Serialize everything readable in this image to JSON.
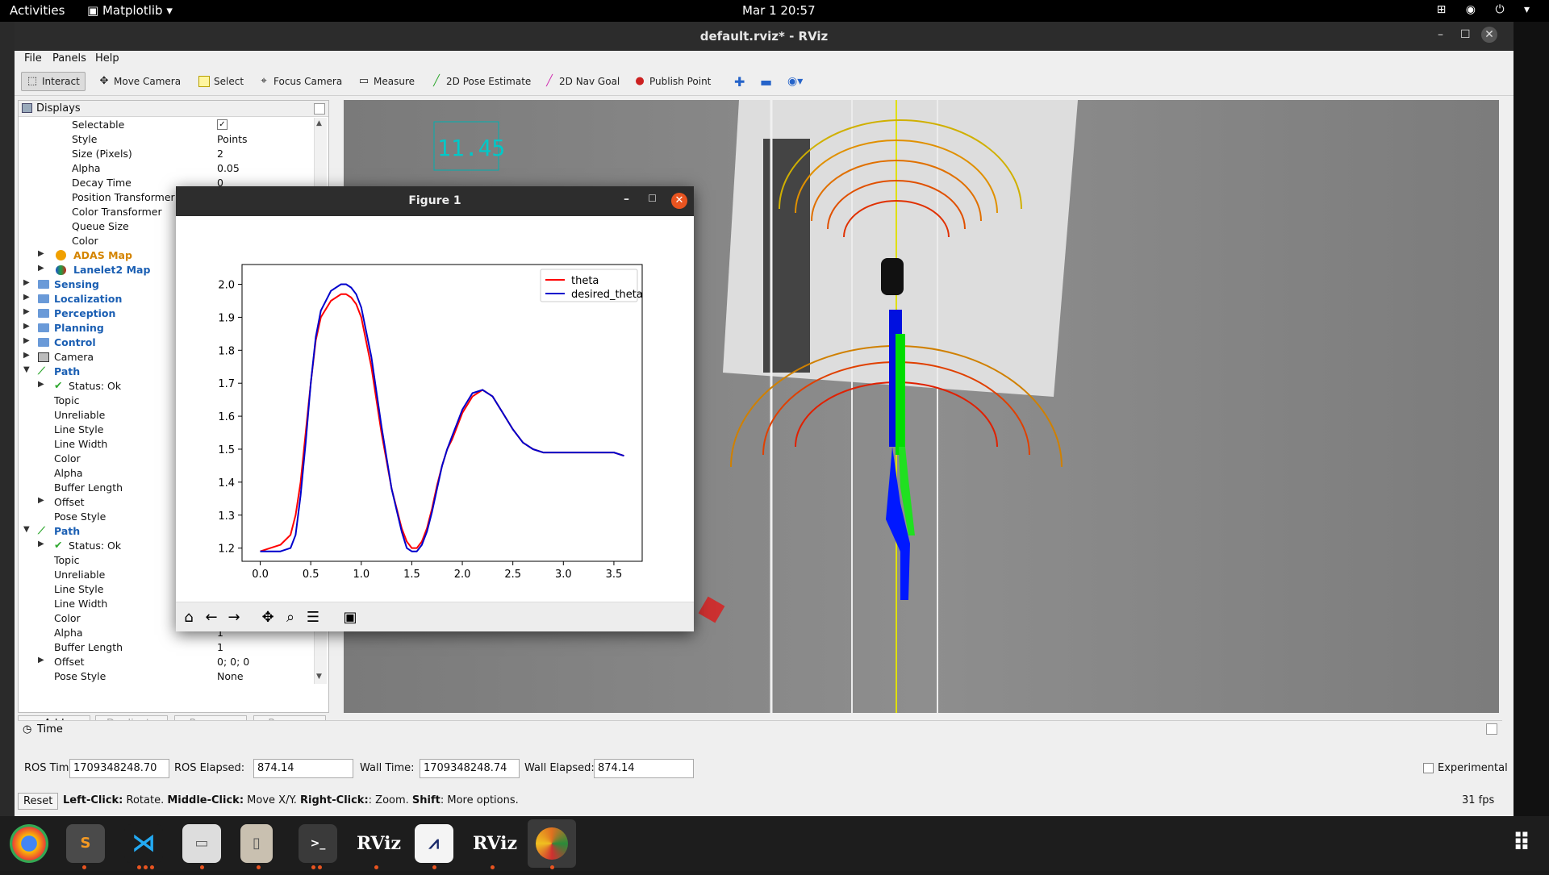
{
  "topbar": {
    "activities": "Activities",
    "app": "Matplotlib",
    "clock": "Mar 1  20:57"
  },
  "window": {
    "title": "default.rviz* - RViz"
  },
  "menu": [
    "File",
    "Panels",
    "Help"
  ],
  "toolbar": {
    "interact": "Interact",
    "move_camera": "Move Camera",
    "select": "Select",
    "focus_camera": "Focus Camera",
    "measure": "Measure",
    "pose_estimate": "2D Pose Estimate",
    "nav_goal": "2D Nav Goal",
    "publish_point": "Publish Point"
  },
  "displays": {
    "title": "Displays",
    "rows": [
      {
        "k": "Selectable",
        "v": "✓"
      },
      {
        "k": "Style",
        "v": "Points"
      },
      {
        "k": "Size (Pixels)",
        "v": "2"
      },
      {
        "k": "Alpha",
        "v": "0.05"
      },
      {
        "k": "Decay Time",
        "v": "0"
      },
      {
        "k": "Position Transformer",
        "v": ""
      },
      {
        "k": "Color Transformer",
        "v": ""
      },
      {
        "k": "Queue Size",
        "v": ""
      },
      {
        "k": "Color",
        "v": ""
      }
    ],
    "groups": {
      "adas": "ADAS Map",
      "lanelet": "Lanelet2 Map",
      "sensing": "Sensing",
      "localization": "Localization",
      "perception": "Perception",
      "planning": "Planning",
      "control": "Control",
      "camera": "Camera",
      "path": "Path",
      "status_ok": "Status: Ok"
    },
    "path_props": [
      "Topic",
      "Unreliable",
      "Line Style",
      "Line Width",
      "Color",
      "Alpha",
      "Buffer Length",
      "Offset",
      "Pose Style"
    ],
    "path2_vals": {
      "alpha": "1",
      "buffer": "1",
      "offset": "0; 0; 0",
      "pose_style": "None"
    },
    "buttons": {
      "add": "Add",
      "duplicate": "Duplicate",
      "remove": "Remove",
      "rename": "Rename"
    }
  },
  "view": {
    "overlay_number": "11.45"
  },
  "time": {
    "title": "Time",
    "ros_time_label": "ROS Time:",
    "ros_time": "1709348248.70",
    "ros_elapsed_label": "ROS Elapsed:",
    "ros_elapsed": "874.14",
    "wall_time_label": "Wall Time:",
    "wall_time": "1709348248.74",
    "wall_elapsed_label": "Wall Elapsed:",
    "wall_elapsed": "874.14",
    "experimental": "Experimental"
  },
  "status": {
    "reset": "Reset",
    "help_left": "Left-Click:",
    "help_left_txt": " Rotate. ",
    "help_mid": "Middle-Click:",
    "help_mid_txt": " Move X/Y. ",
    "help_right": "Right-Click:",
    "help_right_txt": ": Zoom. ",
    "help_shift": "Shift",
    "help_shift_txt": ": More options.",
    "fps": "31 fps"
  },
  "figure": {
    "title": "Figure 1"
  },
  "chart_data": {
    "type": "line",
    "title": "",
    "xlabel": "",
    "ylabel": "",
    "xlim": [
      -0.18,
      3.78
    ],
    "ylim": [
      1.16,
      2.06
    ],
    "xticks": [
      0.0,
      0.5,
      1.0,
      1.5,
      2.0,
      2.5,
      3.0,
      3.5
    ],
    "xtick_labels": [
      "0.0",
      "0.5",
      "1.0",
      "1.5",
      "2.0",
      "2.5",
      "3.0",
      "3.5"
    ],
    "yticks": [
      1.2,
      1.3,
      1.4,
      1.5,
      1.6,
      1.7,
      1.8,
      1.9,
      2.0
    ],
    "ytick_labels": [
      "1.2",
      "1.3",
      "1.4",
      "1.5",
      "1.6",
      "1.7",
      "1.8",
      "1.9",
      "2.0"
    ],
    "legend_position": "top-right",
    "series": [
      {
        "name": "theta",
        "color": "#ff0000",
        "x": [
          0.0,
          0.1,
          0.2,
          0.3,
          0.35,
          0.4,
          0.45,
          0.5,
          0.55,
          0.6,
          0.7,
          0.8,
          0.85,
          0.9,
          0.95,
          1.0,
          1.1,
          1.2,
          1.3,
          1.4,
          1.45,
          1.5,
          1.55,
          1.6,
          1.65,
          1.7,
          1.75,
          1.8,
          1.85,
          1.9,
          1.95,
          2.0,
          2.1,
          2.2,
          2.3,
          2.4,
          2.5,
          2.6,
          2.7,
          2.8,
          2.9,
          3.0,
          3.1,
          3.2,
          3.3,
          3.4,
          3.5,
          3.6
        ],
        "y": [
          1.19,
          1.2,
          1.21,
          1.24,
          1.3,
          1.4,
          1.55,
          1.7,
          1.83,
          1.9,
          1.95,
          1.97,
          1.97,
          1.96,
          1.94,
          1.9,
          1.75,
          1.55,
          1.38,
          1.26,
          1.22,
          1.2,
          1.2,
          1.22,
          1.26,
          1.32,
          1.39,
          1.45,
          1.5,
          1.53,
          1.57,
          1.61,
          1.66,
          1.68,
          1.66,
          1.61,
          1.56,
          1.52,
          1.5,
          1.49,
          1.49,
          1.49,
          1.49,
          1.49,
          1.49,
          1.49,
          1.49,
          1.48
        ]
      },
      {
        "name": "desired_theta",
        "color": "#0000cc",
        "x": [
          0.0,
          0.1,
          0.2,
          0.3,
          0.35,
          0.4,
          0.45,
          0.5,
          0.55,
          0.6,
          0.7,
          0.8,
          0.85,
          0.9,
          0.95,
          1.0,
          1.1,
          1.2,
          1.3,
          1.4,
          1.45,
          1.5,
          1.55,
          1.6,
          1.65,
          1.7,
          1.75,
          1.8,
          1.85,
          1.9,
          1.95,
          2.0,
          2.1,
          2.2,
          2.3,
          2.4,
          2.5,
          2.6,
          2.7,
          2.8,
          2.9,
          3.0,
          3.1,
          3.2,
          3.3,
          3.4,
          3.5,
          3.6
        ],
        "y": [
          1.19,
          1.19,
          1.19,
          1.2,
          1.24,
          1.36,
          1.52,
          1.7,
          1.84,
          1.92,
          1.98,
          2.0,
          2.0,
          1.99,
          1.97,
          1.93,
          1.78,
          1.57,
          1.38,
          1.25,
          1.2,
          1.19,
          1.19,
          1.21,
          1.25,
          1.31,
          1.38,
          1.45,
          1.5,
          1.54,
          1.58,
          1.62,
          1.67,
          1.68,
          1.66,
          1.61,
          1.56,
          1.52,
          1.5,
          1.49,
          1.49,
          1.49,
          1.49,
          1.49,
          1.49,
          1.49,
          1.49,
          1.48
        ]
      }
    ]
  }
}
